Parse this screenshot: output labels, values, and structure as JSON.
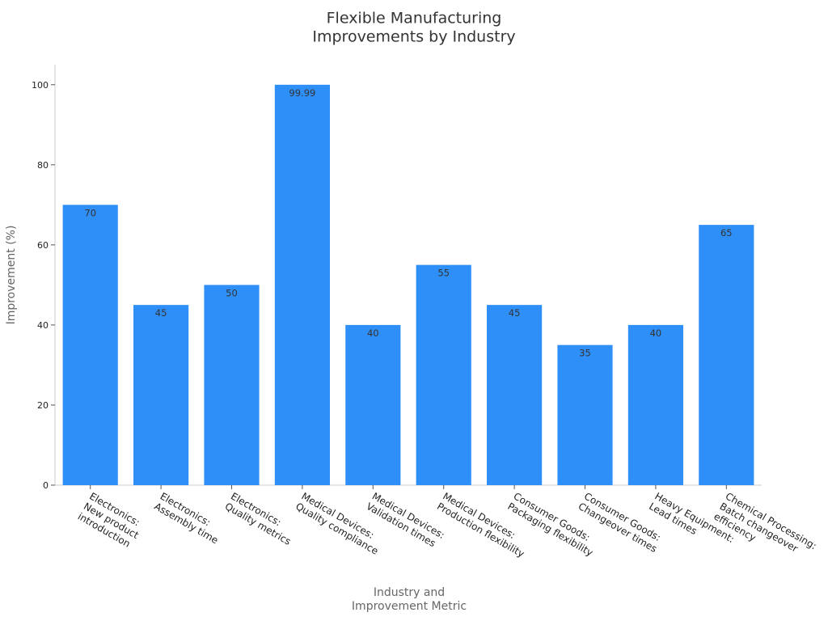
{
  "chart_data": {
    "type": "bar",
    "title": "Flexible Manufacturing\nImprovements by Industry",
    "x_label": "Industry and\nImprovement Metric",
    "y_label": "Improvement (%)",
    "categories": [
      "Electronics:\nNew product\nintroduction",
      "Electronics:\nAssembly time",
      "Electronics:\nQuality metrics",
      "Medical Devices:\nQuality compliance",
      "Medical Devices:\nValidation times",
      "Medical Devices:\nProduction flexibility",
      "Consumer Goods:\nPackaging flexibility",
      "Consumer Goods:\nChangeover times",
      "Heavy Equipment:\nLead times",
      "Chemical Processing:\nBatch changeover\nefficiency"
    ],
    "values": [
      70,
      45,
      50,
      99.99,
      40,
      55,
      45,
      35,
      40,
      65
    ],
    "color": "#2f8ff8",
    "ylim": [
      0,
      105
    ],
    "yticks": [
      0,
      20,
      40,
      60,
      80,
      100
    ],
    "grid": false
  }
}
